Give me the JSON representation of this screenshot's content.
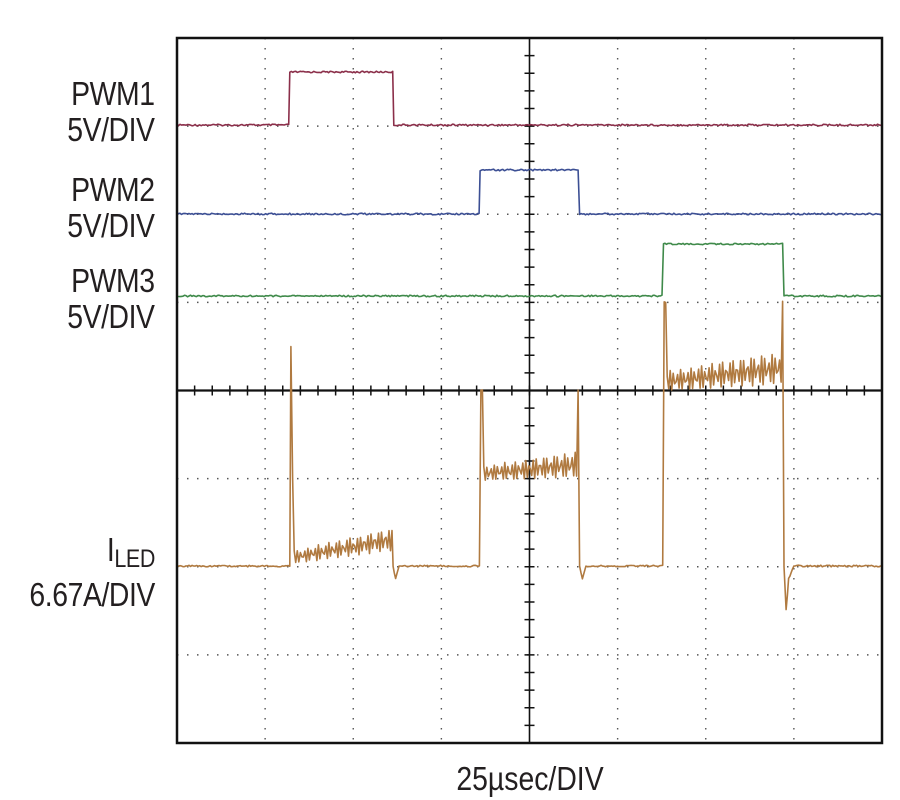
{
  "chart_data": {
    "type": "line",
    "grid": true,
    "grid_divisions": {
      "x": 8,
      "y": 8
    },
    "xlabel": "25µsec/DIV",
    "x_unit": "µs",
    "xlim": [
      0,
      200
    ],
    "colors": {
      "PWM1": "#8b2f4a",
      "PWM2": "#3c4f94",
      "PWM3": "#3f8a4a",
      "ILED": "#b07a40",
      "grid": "#555555",
      "frame": "#111111"
    },
    "channels": [
      {
        "name": "PWM1",
        "label": "PWM1",
        "scale": "5V/DIV",
        "color": "PWM1",
        "points": [
          [
            0,
            0
          ],
          [
            31.7,
            0
          ],
          [
            32,
            1
          ],
          [
            61.2,
            1
          ],
          [
            61.5,
            0
          ],
          [
            200,
            0
          ]
        ]
      },
      {
        "name": "PWM2",
        "label": "PWM2",
        "scale": "5V/DIV",
        "color": "PWM2",
        "points": [
          [
            0,
            0
          ],
          [
            85.7,
            0
          ],
          [
            86,
            1
          ],
          [
            113.8,
            1
          ],
          [
            114.2,
            0
          ],
          [
            200,
            0
          ]
        ]
      },
      {
        "name": "PWM3",
        "label": "PWM3",
        "scale": "5V/DIV",
        "color": "PWM3",
        "points": [
          [
            0,
            0
          ],
          [
            137.6,
            0
          ],
          [
            138,
            1
          ],
          [
            171.8,
            1
          ],
          [
            172.2,
            0
          ],
          [
            200,
            0
          ]
        ]
      },
      {
        "name": "ILED",
        "label_main": "I",
        "label_sub": "LED",
        "scale": "6.67A/DIV",
        "color": "ILED",
        "points": [
          [
            0,
            1
          ],
          [
            32,
            1
          ],
          [
            32.3,
            3.5
          ],
          [
            32.8,
            2.0
          ],
          [
            35,
            1.1
          ],
          [
            61,
            1.1
          ],
          [
            61.3,
            1
          ],
          [
            62,
            0.85
          ],
          [
            63,
            1
          ],
          [
            85.8,
            1
          ],
          [
            86.2,
            3.0
          ],
          [
            113.8,
            3.0
          ],
          [
            114.2,
            1
          ],
          [
            115,
            0.85
          ],
          [
            116,
            1
          ],
          [
            137.8,
            1
          ],
          [
            138.2,
            4.0
          ],
          [
            171.8,
            4.0
          ],
          [
            172.2,
            1
          ],
          [
            172.8,
            0.5
          ],
          [
            173.5,
            0.85
          ],
          [
            175,
            1
          ],
          [
            200,
            1
          ]
        ],
        "ripple_segments": [
          {
            "x_range": [
              33,
              61
            ],
            "level_start": 1.1,
            "level_end": 1.3,
            "amplitude": 0.12
          },
          {
            "x_range": [
              87,
              113.5
            ],
            "level_start": 2.05,
            "level_end": 2.15,
            "amplitude": 0.14
          },
          {
            "x_range": [
              139,
              171.5
            ],
            "level_start": 3.1,
            "level_end": 3.25,
            "amplitude": 0.18
          }
        ]
      }
    ]
  }
}
